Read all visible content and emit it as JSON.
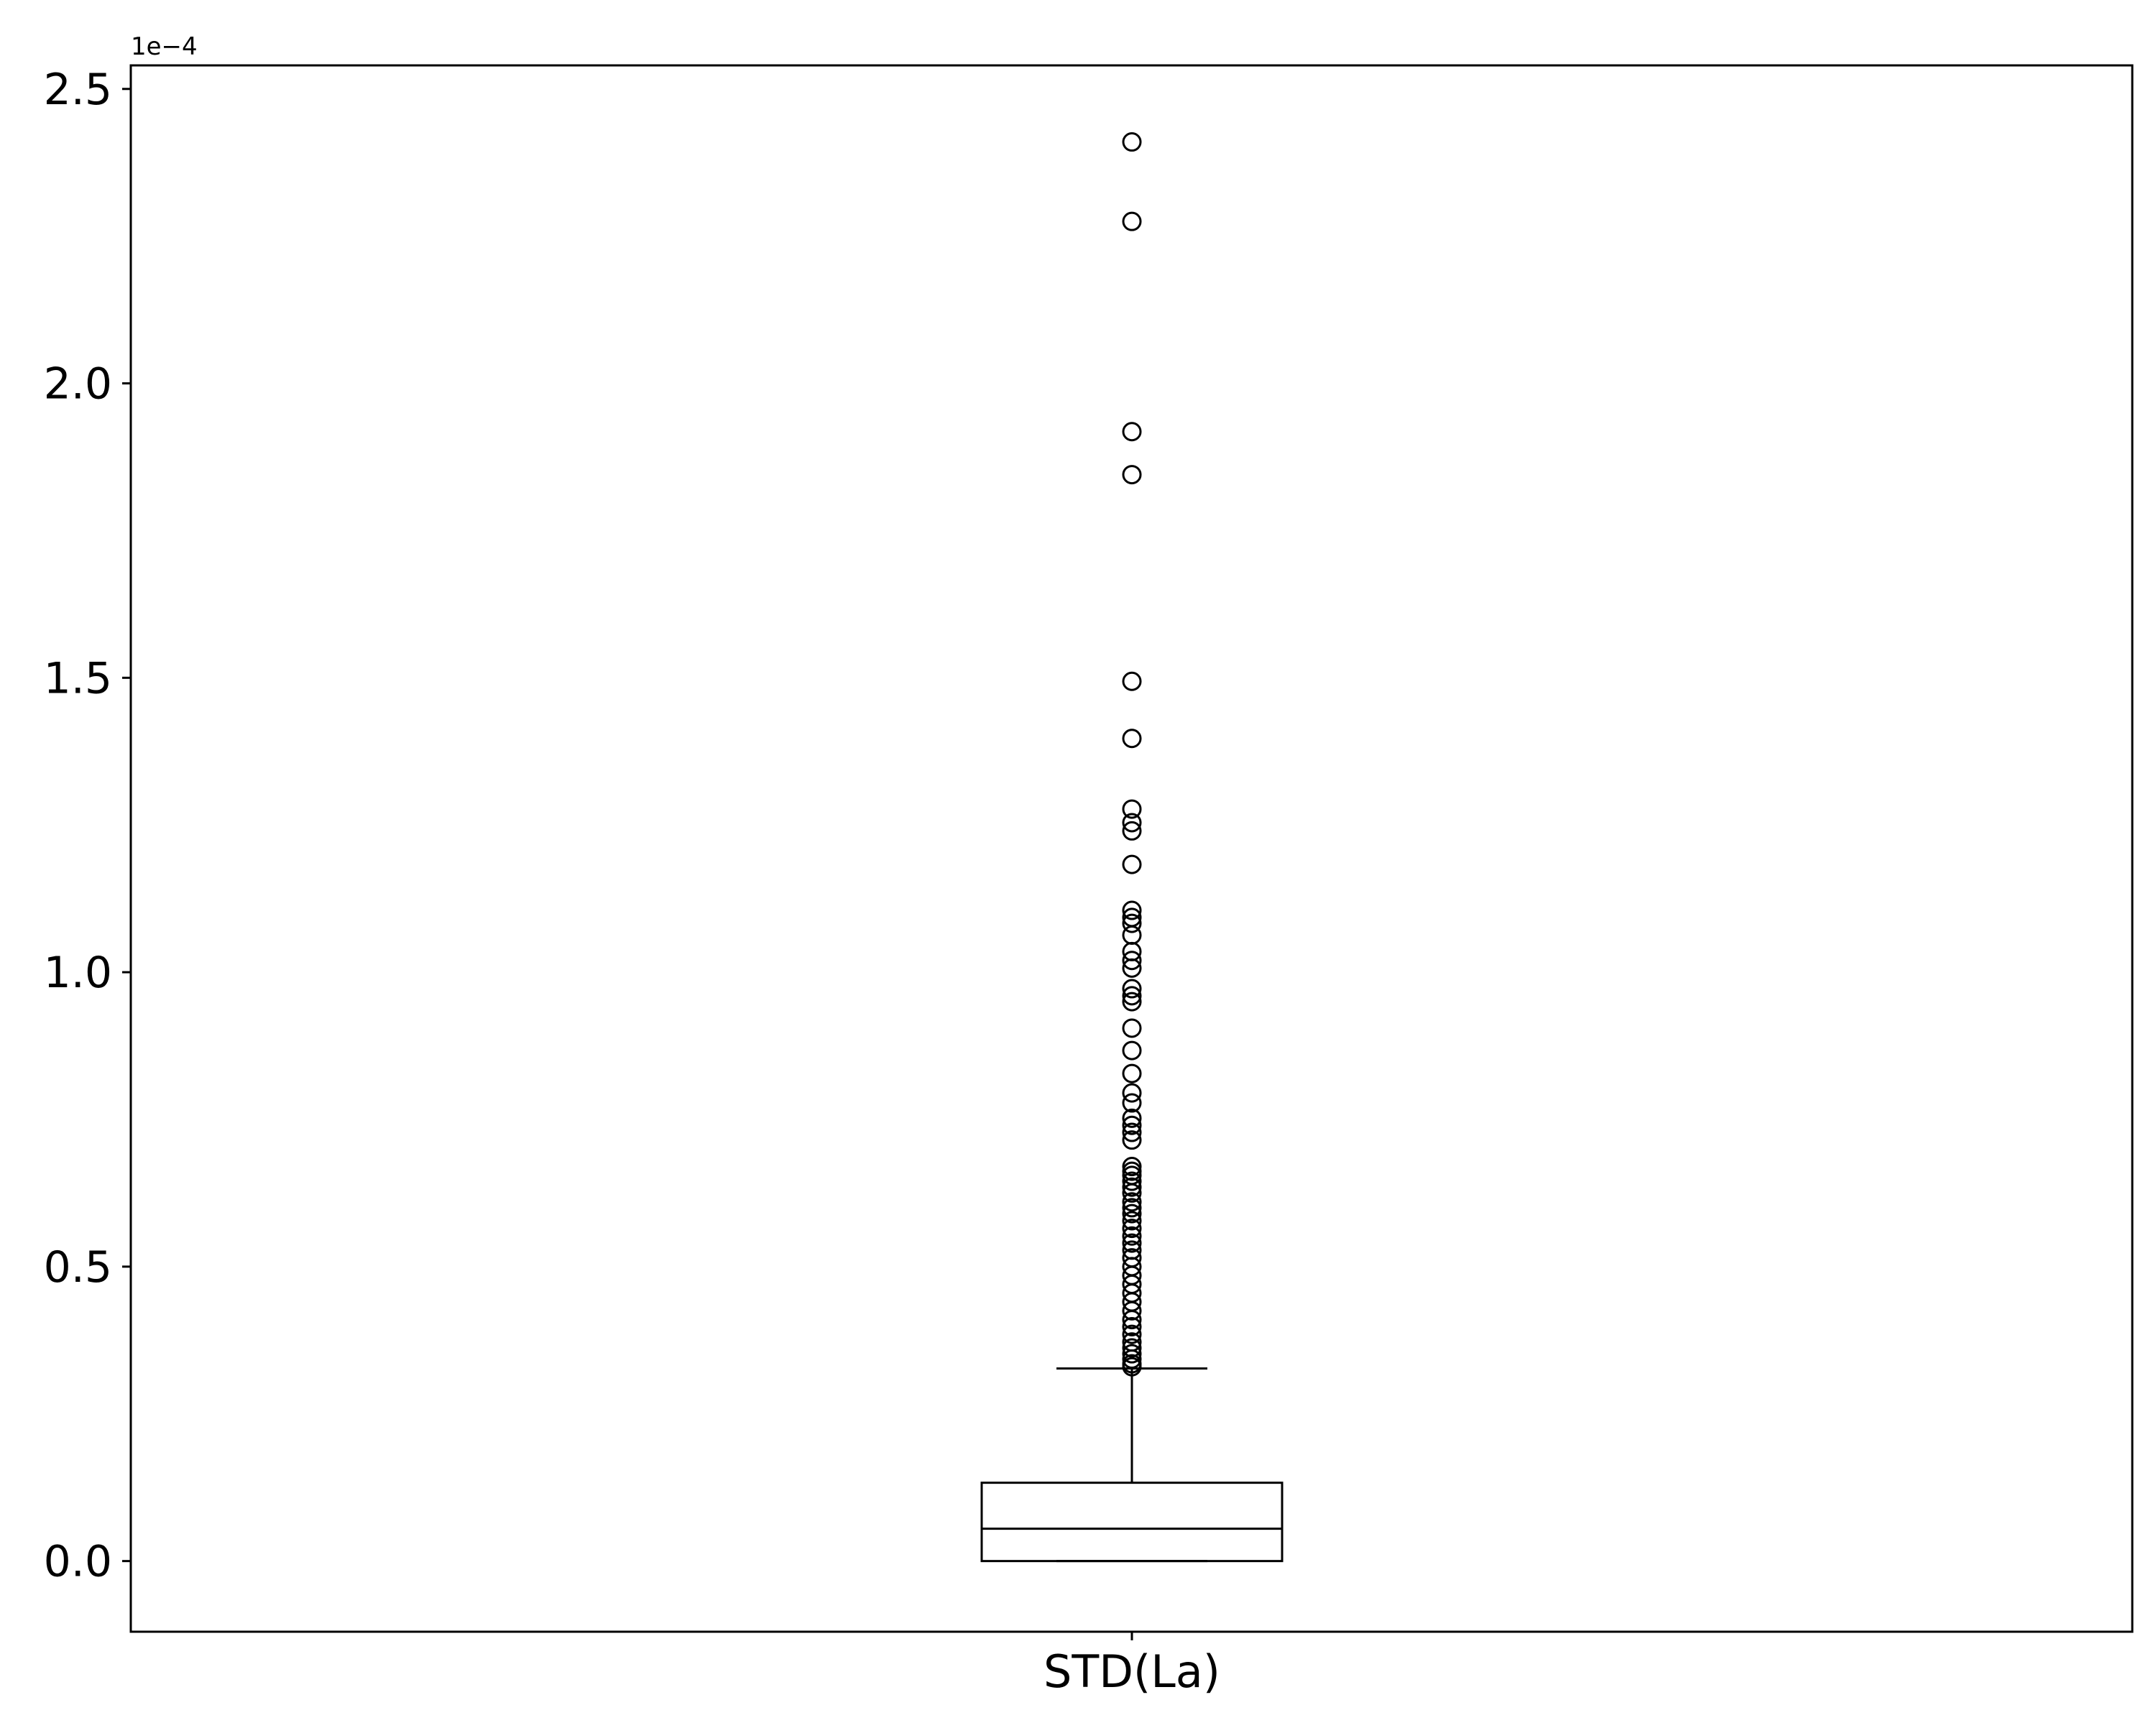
{
  "chart_data": {
    "type": "box",
    "category": "STD(La)",
    "y_offset_label": "1e−4",
    "y_scale": 0.0001,
    "ylim": [
      -0.12,
      2.54
    ],
    "yticks": [
      0.0,
      0.5,
      1.0,
      1.5,
      2.0,
      2.5
    ],
    "ytick_labels": [
      "0.0",
      "0.5",
      "1.0",
      "1.5",
      "2.0",
      "2.5"
    ],
    "grid": false,
    "box": {
      "min": 0.0,
      "q1": 0.0,
      "median": 0.055,
      "q3": 0.133,
      "whisker_low": 0.0,
      "whisker_high": 0.327
    },
    "fliers": [
      2.41,
      2.275,
      1.918,
      1.845,
      1.494,
      1.397,
      1.277,
      1.254,
      1.24,
      1.183,
      1.105,
      1.093,
      1.083,
      1.063,
      1.035,
      1.02,
      1.007,
      0.972,
      0.96,
      0.95,
      0.905,
      0.867,
      0.828,
      0.795,
      0.778,
      0.752,
      0.74,
      0.728,
      0.715,
      0.67,
      0.662,
      0.655,
      0.645,
      0.635,
      0.625,
      0.61,
      0.6,
      0.59,
      0.578,
      0.565,
      0.552,
      0.54,
      0.528,
      0.515,
      0.5,
      0.485,
      0.47,
      0.455,
      0.44,
      0.425,
      0.41,
      0.398,
      0.385,
      0.372,
      0.362,
      0.352,
      0.343,
      0.335,
      0.33
    ],
    "colors": {
      "stroke": "#000000",
      "background": "#ffffff"
    }
  }
}
